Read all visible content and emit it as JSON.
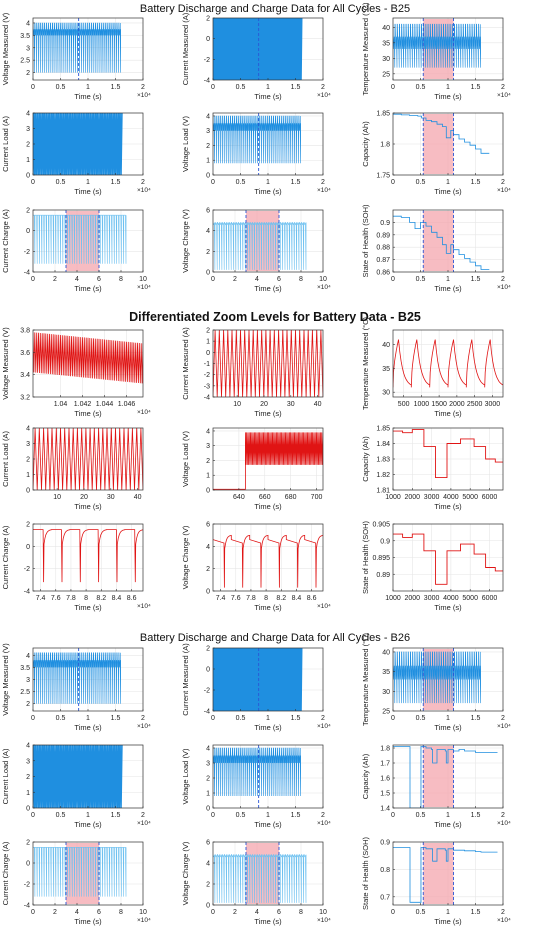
{
  "titles": {
    "top": "Battery Discharge and Charge Data for All Cycles - B25",
    "middle": "Differentiated Zoom Levels for Battery Data  - B25",
    "bottom": "Battery Discharge and Charge Data for All Cycles - B26"
  },
  "colors": {
    "blue": "#1f8fe0",
    "light_blue": "#6cc0f0",
    "red": "#e01414",
    "shade": "#f4a6ad",
    "dash": "#2a55d6"
  },
  "chart_data": [
    {
      "type": "line",
      "style": "dense_blue",
      "ylabel": "Voltage Measured (V)",
      "xlabel": "Time (s)",
      "xlim": [
        0,
        2
      ],
      "ylim": [
        1.7,
        4.2
      ],
      "xticks": [
        0,
        0.5,
        1,
        1.5,
        2
      ],
      "yticks": [
        2,
        2.5,
        3,
        3.5,
        4
      ],
      "exponent": "×10⁴",
      "vlines": [
        0.83
      ],
      "data_xrange": [
        0,
        1.6
      ],
      "osc": {
        "lo": 2.0,
        "hi": 4.0,
        "base": 3.5,
        "cycles": 45
      }
    },
    {
      "type": "line",
      "style": "solid_blue",
      "ylabel": "Current Measured (A)",
      "xlabel": "Time (s)",
      "xlim": [
        0,
        2
      ],
      "ylim": [
        -4,
        2
      ],
      "xticks": [
        0,
        0.5,
        1,
        1.5,
        2
      ],
      "yticks": [
        -4,
        -2,
        0,
        2
      ],
      "exponent": "×10⁴",
      "vlines": [
        0.83
      ],
      "data_xrange": [
        0,
        1.6
      ],
      "osc": {
        "lo": -4,
        "hi": 2,
        "base": 0,
        "cycles": 60
      }
    },
    {
      "type": "line",
      "style": "dense_blue",
      "ylabel": "Temperature Measured (°C)",
      "xlabel": "Time (s)",
      "xlim": [
        0,
        2
      ],
      "ylim": [
        23,
        43
      ],
      "xticks": [
        0,
        0.5,
        1,
        1.5,
        2
      ],
      "yticks": [
        25,
        30,
        35,
        40
      ],
      "exponent": "×10⁴",
      "shade": [
        0.55,
        1.1
      ],
      "vlines": [
        0.55,
        1.1
      ],
      "data_xrange": [
        0,
        1.6
      ],
      "osc": {
        "lo": 27,
        "hi": 41,
        "base": 33,
        "cycles": 40
      }
    },
    {
      "type": "line",
      "style": "solid_blue",
      "ylabel": "Current Load (A)",
      "xlabel": "Time (s)",
      "xlim": [
        0,
        2
      ],
      "ylim": [
        0,
        4
      ],
      "xticks": [
        0,
        0.5,
        1,
        1.5,
        2
      ],
      "yticks": [
        0,
        1,
        2,
        3,
        4
      ],
      "exponent": "×10⁴",
      "vlines": [],
      "data_xrange": [
        0,
        1.6
      ],
      "osc": {
        "lo": 0,
        "hi": 4,
        "base": 2,
        "cycles": 50
      }
    },
    {
      "type": "line",
      "style": "dense_blue",
      "ylabel": "Voltage Load (V)",
      "xlabel": "Time (s)",
      "xlim": [
        0,
        2
      ],
      "ylim": [
        0,
        4.2
      ],
      "xticks": [
        0,
        0.5,
        1,
        1.5,
        2
      ],
      "yticks": [
        0,
        1,
        2,
        3,
        4
      ],
      "exponent": "×10⁴",
      "vlines": [
        0.83
      ],
      "data_xrange": [
        0,
        1.6
      ],
      "osc": {
        "lo": 0.8,
        "hi": 4.0,
        "base": 3.0,
        "cycles": 45
      }
    },
    {
      "type": "step",
      "style": "step_blue",
      "ylabel": "Capacity (Ah)",
      "xlabel": "Time (s)",
      "xlim": [
        0,
        2
      ],
      "ylim": [
        1.75,
        1.85
      ],
      "xticks": [
        0,
        0.5,
        1,
        1.5,
        2
      ],
      "yticks": [
        1.75,
        1.8,
        1.85
      ],
      "exponent": "×10⁴",
      "shade": [
        0.55,
        1.1
      ],
      "vlines": [
        0.55,
        1.1
      ],
      "x": [
        0,
        0.15,
        0.3,
        0.45,
        0.52,
        0.6,
        0.7,
        0.8,
        0.9,
        0.97,
        1.05,
        1.1,
        1.2,
        1.3,
        1.4,
        1.5,
        1.6
      ],
      "y": [
        1.848,
        1.847,
        1.846,
        1.845,
        1.842,
        1.838,
        1.836,
        1.832,
        1.828,
        1.81,
        1.822,
        1.815,
        1.808,
        1.803,
        1.798,
        1.792,
        1.785
      ]
    },
    {
      "type": "line",
      "style": "dense_light_blue",
      "ylabel": "Current Charge (A)",
      "xlabel": "Time (s)",
      "xlim": [
        0,
        10
      ],
      "ylim": [
        -4,
        2
      ],
      "xticks": [
        0,
        2,
        4,
        6,
        8,
        10
      ],
      "yticks": [
        -4,
        -2,
        0,
        2
      ],
      "exponent": "×10⁴",
      "shade": [
        3,
        6
      ],
      "vlines": [
        3,
        6
      ],
      "data_xrange": [
        0,
        8.5
      ],
      "osc": {
        "lo": -3.2,
        "hi": 1.5,
        "base": 1.5,
        "cycles": 40
      }
    },
    {
      "type": "line",
      "style": "dense_light_blue",
      "ylabel": "Voltage Charge (V)",
      "xlabel": "Time (s)",
      "xlim": [
        0,
        10
      ],
      "ylim": [
        0,
        6
      ],
      "xticks": [
        0,
        2,
        4,
        6,
        8,
        10
      ],
      "yticks": [
        0,
        2,
        4,
        6
      ],
      "exponent": "×10⁴",
      "shade": [
        3,
        6
      ],
      "vlines": [
        3,
        6
      ],
      "data_xrange": [
        0,
        8.5
      ],
      "osc": {
        "lo": 0.2,
        "hi": 4.8,
        "base": 4.6,
        "cycles": 40
      }
    },
    {
      "type": "step",
      "style": "step_blue",
      "ylabel": "State of Health (SOH)",
      "xlabel": "Time (s)",
      "xlim": [
        0,
        2
      ],
      "ylim": [
        0.86,
        0.91
      ],
      "xticks": [
        0,
        0.5,
        1,
        1.5,
        2
      ],
      "yticks": [
        0.86,
        0.87,
        0.88,
        0.89,
        0.9
      ],
      "exponent": "×10⁴",
      "shade": [
        0.55,
        1.1
      ],
      "vlines": [
        0.55,
        1.1
      ],
      "x": [
        0,
        0.15,
        0.3,
        0.4,
        0.5,
        0.6,
        0.7,
        0.8,
        0.9,
        0.97,
        1.05,
        1.1,
        1.2,
        1.3,
        1.4,
        1.5,
        1.6
      ],
      "y": [
        0.905,
        0.904,
        0.9,
        0.895,
        0.9,
        0.897,
        0.892,
        0.888,
        0.882,
        0.875,
        0.882,
        0.878,
        0.874,
        0.871,
        0.868,
        0.865,
        0.862
      ]
    },
    {
      "type": "line",
      "style": "zoom_dense",
      "ylabel": "Voltage Measured (V)",
      "xlabel": "Time (s)",
      "xlim": [
        1.0375,
        1.0475
      ],
      "ylim": [
        3.2,
        3.8
      ],
      "xticks": [
        1.04,
        1.042,
        1.044,
        1.046
      ],
      "yticks": [
        3.2,
        3.4,
        3.6,
        3.8
      ],
      "exponent": "×10⁴",
      "osc": {
        "lo": 3.42,
        "hi": 3.78,
        "trend": -0.1,
        "cycles": 60
      }
    },
    {
      "type": "line",
      "style": "zoom_triangle",
      "ylabel": "Current Measured (A)",
      "xlabel": "Time (s)",
      "xlim": [
        1,
        42
      ],
      "ylim": [
        -4,
        2
      ],
      "xticks": [
        10,
        20,
        30,
        40
      ],
      "yticks": [
        -4,
        -3,
        -2,
        -1,
        0,
        1,
        2
      ],
      "osc": {
        "lo": -4,
        "hi": 2,
        "cycles": 26
      }
    },
    {
      "type": "line",
      "style": "zoom_temp",
      "ylabel": "Temperature Measured (°C)",
      "xlabel": "Time (s)",
      "xlim": [
        200,
        3300
      ],
      "ylim": [
        29,
        43
      ],
      "xticks": [
        500,
        1000,
        1500,
        2000,
        2500,
        3000
      ],
      "yticks": [
        30,
        35,
        40
      ],
      "osc": {
        "lo": 31,
        "hi": 41,
        "cycles": 6
      }
    },
    {
      "type": "line",
      "style": "zoom_triangle",
      "ylabel": "Current Load (A)",
      "xlabel": "Time (s)",
      "xlim": [
        1,
        42
      ],
      "ylim": [
        0,
        4
      ],
      "xticks": [
        10,
        20,
        30,
        40
      ],
      "yticks": [
        0,
        1,
        2,
        3,
        4
      ],
      "osc": {
        "lo": 0,
        "hi": 4,
        "cycles": 26
      }
    },
    {
      "type": "line",
      "style": "zoom_load",
      "ylabel": "Voltage Load (V)",
      "xlabel": "Time (s)",
      "xlim": [
        620,
        705
      ],
      "ylim": [
        0,
        4.2
      ],
      "xticks": [
        640,
        660,
        680,
        700
      ],
      "yticks": [
        0,
        1,
        2,
        3,
        4
      ],
      "osc": {
        "lo": 1.7,
        "hi": 3.9,
        "start": 645,
        "cycles": 60
      }
    },
    {
      "type": "step",
      "style": "step_red",
      "ylabel": "Capacity (Ah)",
      "xlabel": "Time (s)",
      "xlim": [
        1000,
        6700
      ],
      "ylim": [
        1.81,
        1.85
      ],
      "xticks": [
        1000,
        2000,
        3000,
        4000,
        5000,
        6000
      ],
      "yticks": [
        1.81,
        1.82,
        1.83,
        1.84,
        1.85
      ],
      "x": [
        1000,
        1500,
        2000,
        2600,
        3200,
        3800,
        4500,
        5200,
        5800,
        6300
      ],
      "y": [
        1.848,
        1.847,
        1.849,
        1.838,
        1.818,
        1.84,
        1.843,
        1.838,
        1.83,
        1.828
      ]
    },
    {
      "type": "line",
      "style": "zoom_charge_i",
      "ylabel": "Current Charge (A)",
      "xlabel": "Time (s)",
      "xlim": [
        7.3,
        8.75
      ],
      "ylim": [
        -4,
        2
      ],
      "xticks": [
        7.4,
        7.6,
        7.8,
        8,
        8.2,
        8.4,
        8.6
      ],
      "yticks": [
        -4,
        -2,
        0,
        2
      ],
      "exponent": "×10⁴",
      "osc": {
        "lo": -3.2,
        "hi": 1.5,
        "cycles": 6
      }
    },
    {
      "type": "line",
      "style": "zoom_charge_v",
      "ylabel": "Voltage Charge (V)",
      "xlabel": "Time (s)",
      "xlim": [
        7.3,
        8.75
      ],
      "ylim": [
        0,
        6
      ],
      "xticks": [
        7.4,
        7.6,
        7.8,
        8,
        8.2,
        8.4,
        8.6
      ],
      "yticks": [
        0,
        2,
        4,
        6
      ],
      "exponent": "×10⁴",
      "osc": {
        "lo": 0.3,
        "hi": 5.0,
        "cycles": 6
      }
    },
    {
      "type": "step",
      "style": "step_red",
      "ylabel": "State of Health (SOH)",
      "xlabel": "Time (s)",
      "xlim": [
        1000,
        6700
      ],
      "ylim": [
        0.885,
        0.905
      ],
      "xticks": [
        1000,
        2000,
        3000,
        4000,
        5000,
        6000
      ],
      "yticks": [
        0.89,
        0.895,
        0.9,
        0.905
      ],
      "x": [
        1000,
        1500,
        2000,
        2600,
        3200,
        3800,
        4500,
        5200,
        5800,
        6300
      ],
      "y": [
        0.902,
        0.901,
        0.902,
        0.897,
        0.887,
        0.897,
        0.899,
        0.896,
        0.892,
        0.891
      ]
    },
    {
      "type": "line",
      "style": "dense_blue",
      "ylabel": "Voltage Measured (V)",
      "xlabel": "Time (s)",
      "xlim": [
        0,
        2
      ],
      "ylim": [
        1.7,
        4.3
      ],
      "xticks": [
        0,
        0.5,
        1,
        1.5,
        2
      ],
      "yticks": [
        2,
        2.5,
        3,
        3.5,
        4
      ],
      "exponent": "×10⁴",
      "vlines": [
        0.83
      ],
      "data_xrange": [
        0,
        1.6
      ],
      "osc": {
        "lo": 2.0,
        "hi": 4.1,
        "base": 3.5,
        "cycles": 45
      }
    },
    {
      "type": "line",
      "style": "solid_blue",
      "ylabel": "Current Measured (A)",
      "xlabel": "Time (s)",
      "xlim": [
        0,
        2
      ],
      "ylim": [
        -4,
        2
      ],
      "xticks": [
        0,
        0.5,
        1,
        1.5,
        2
      ],
      "yticks": [
        -4,
        -2,
        0,
        2
      ],
      "exponent": "×10⁴",
      "vlines": [
        0.83
      ],
      "data_xrange": [
        0,
        1.6
      ],
      "osc": {
        "lo": -4,
        "hi": 2,
        "base": 0,
        "cycles": 60
      }
    },
    {
      "type": "line",
      "style": "dense_blue",
      "ylabel": "Temperature Measured (°C)",
      "xlabel": "Time (s)",
      "xlim": [
        0,
        2
      ],
      "ylim": [
        25,
        41
      ],
      "xticks": [
        0,
        0.5,
        1,
        1.5,
        2
      ],
      "yticks": [
        25,
        30,
        35,
        40
      ],
      "exponent": "×10⁴",
      "shade": [
        0.55,
        1.1
      ],
      "vlines": [
        0.55,
        1.1
      ],
      "data_xrange": [
        0,
        1.6
      ],
      "osc": {
        "lo": 27,
        "hi": 40,
        "base": 33,
        "cycles": 40
      }
    },
    {
      "type": "line",
      "style": "solid_blue",
      "ylabel": "Current Load (A)",
      "xlabel": "Time (s)",
      "xlim": [
        0,
        2
      ],
      "ylim": [
        0,
        4
      ],
      "xticks": [
        0,
        0.5,
        1,
        1.5,
        2
      ],
      "yticks": [
        0,
        1,
        2,
        3,
        4
      ],
      "exponent": "×10⁴",
      "vlines": [],
      "data_xrange": [
        0,
        1.6
      ],
      "osc": {
        "lo": 0,
        "hi": 4,
        "base": 2,
        "cycles": 50
      }
    },
    {
      "type": "line",
      "style": "dense_blue",
      "ylabel": "Voltage Load (V)",
      "xlabel": "Time (s)",
      "xlim": [
        0,
        2
      ],
      "ylim": [
        0,
        4.2
      ],
      "xticks": [
        0,
        0.5,
        1,
        1.5,
        2
      ],
      "yticks": [
        0,
        1,
        2,
        3,
        4
      ],
      "exponent": "×10⁴",
      "vlines": [
        0.83
      ],
      "data_xrange": [
        0,
        1.6
      ],
      "osc": {
        "lo": 0.8,
        "hi": 4.0,
        "base": 3.0,
        "cycles": 45
      }
    },
    {
      "type": "step",
      "style": "step_blue",
      "ylabel": "Capacity (Ah)",
      "xlabel": "Time (s)",
      "xlim": [
        0,
        2
      ],
      "ylim": [
        1.4,
        1.82
      ],
      "xticks": [
        0,
        0.5,
        1,
        1.5,
        2
      ],
      "yticks": [
        1.4,
        1.5,
        1.6,
        1.7,
        1.8
      ],
      "exponent": "×10⁴",
      "shade": [
        0.55,
        1.1
      ],
      "vlines": [
        0.55,
        1.1
      ],
      "x": [
        0,
        0.3,
        0.31,
        0.5,
        0.51,
        0.6,
        0.7,
        0.72,
        0.8,
        0.95,
        0.97,
        1.0,
        1.1,
        1.2,
        1.3,
        1.4,
        1.5,
        1.6
      ],
      "y": [
        1.81,
        1.81,
        1.4,
        1.4,
        1.81,
        1.8,
        1.79,
        1.7,
        1.79,
        1.78,
        1.7,
        1.79,
        1.78,
        1.79,
        1.78,
        1.78,
        1.77,
        1.77
      ]
    },
    {
      "type": "line",
      "style": "dense_light_blue",
      "ylabel": "Current Charge (A)",
      "xlabel": "Time (s)",
      "xlim": [
        0,
        10
      ],
      "ylim": [
        -4,
        2
      ],
      "xticks": [
        0,
        2,
        4,
        6,
        8,
        10
      ],
      "yticks": [
        -4,
        -2,
        0,
        2
      ],
      "exponent": "×10⁴",
      "shade": [
        3,
        6
      ],
      "vlines": [
        3,
        6
      ],
      "data_xrange": [
        0,
        8.5
      ],
      "osc": {
        "lo": -3.2,
        "hi": 1.5,
        "base": 1.5,
        "cycles": 40
      }
    },
    {
      "type": "line",
      "style": "dense_light_blue",
      "ylabel": "Voltage Charge (V)",
      "xlabel": "Time (s)",
      "xlim": [
        0,
        10
      ],
      "ylim": [
        0,
        6
      ],
      "xticks": [
        0,
        2,
        4,
        6,
        8,
        10
      ],
      "yticks": [
        0,
        2,
        4,
        6
      ],
      "exponent": "×10⁴",
      "shade": [
        3,
        6
      ],
      "vlines": [
        3,
        6
      ],
      "data_xrange": [
        0,
        8.5
      ],
      "osc": {
        "lo": 0.2,
        "hi": 4.8,
        "base": 4.6,
        "cycles": 40
      }
    },
    {
      "type": "step",
      "style": "step_blue",
      "ylabel": "State of Health (SOH)",
      "xlabel": "Time (s)",
      "xlim": [
        0,
        2
      ],
      "ylim": [
        0.67,
        0.9
      ],
      "xticks": [
        0,
        0.5,
        1,
        1.5,
        2
      ],
      "yticks": [
        0.7,
        0.8,
        0.9
      ],
      "exponent": "×10⁴",
      "shade": [
        0.55,
        1.1
      ],
      "vlines": [
        0.55,
        1.1
      ],
      "x": [
        0,
        0.3,
        0.31,
        0.5,
        0.51,
        0.6,
        0.7,
        0.72,
        0.8,
        0.95,
        0.97,
        1.0,
        1.1,
        1.2,
        1.3,
        1.4,
        1.5,
        1.6
      ],
      "y": [
        0.88,
        0.88,
        0.68,
        0.68,
        0.88,
        0.875,
        0.875,
        0.83,
        0.875,
        0.87,
        0.83,
        0.875,
        0.87,
        0.87,
        0.868,
        0.868,
        0.865,
        0.863
      ]
    }
  ]
}
